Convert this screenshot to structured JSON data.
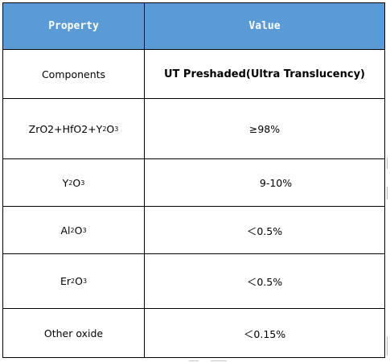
{
  "table": {
    "headers": {
      "property": "Property",
      "value": "Value"
    },
    "rows": [
      {
        "property": "Components",
        "value": "UT Preshaded(Ultra Translucency)"
      },
      {
        "property_parts": [
          "ZrO2+HfO2+Y",
          "2",
          "O",
          "3"
        ],
        "property": "ZrO2+HfO2+Y2O3",
        "value": "≥98%"
      },
      {
        "property_parts": [
          "Y",
          "2",
          "O",
          "3"
        ],
        "property": "Y2O3",
        "value": "9-10%"
      },
      {
        "property_parts": [
          "Al",
          "2",
          "O",
          "3"
        ],
        "property": "Al2O3",
        "value": "＜0.5%"
      },
      {
        "property_parts": [
          "Er",
          "2",
          "O",
          "3"
        ],
        "property": "Er2O3",
        "value": "＜0.5%"
      },
      {
        "property": "Other oxide",
        "value": "＜0.15%"
      }
    ]
  },
  "colors": {
    "header_bg": "#5b9bd5",
    "header_text": "#ffffff",
    "border": "#000000"
  }
}
